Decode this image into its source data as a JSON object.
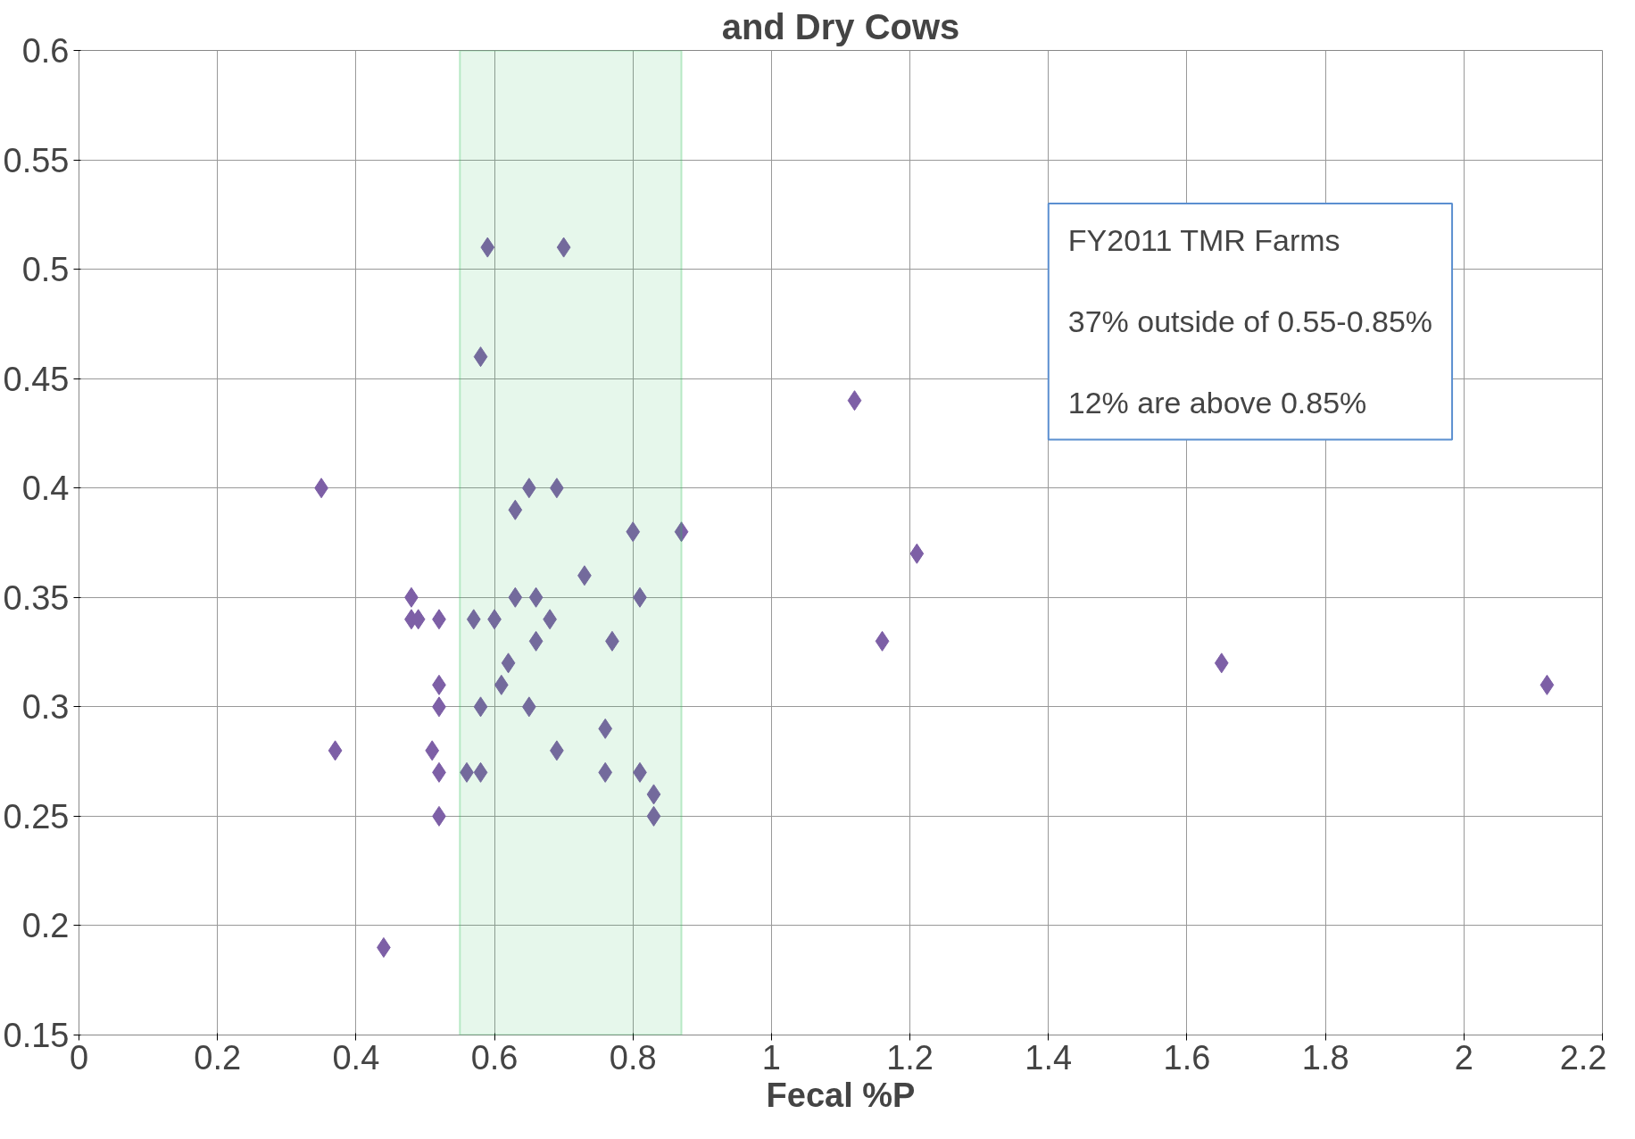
{
  "chart_data": {
    "type": "scatter",
    "title": "and Dry Cows",
    "xlabel": "Fecal %P",
    "x": [
      0.59,
      0.7,
      0.58,
      1.12,
      0.35,
      0.65,
      0.69,
      0.63,
      0.8,
      0.87,
      1.21,
      0.73,
      0.48,
      0.63,
      0.66,
      0.81,
      0.48,
      0.49,
      0.52,
      0.57,
      0.6,
      0.68,
      0.66,
      0.77,
      1.16,
      0.62,
      1.65,
      0.61,
      0.52,
      2.12,
      0.52,
      0.58,
      0.65,
      0.76,
      0.37,
      0.51,
      0.69,
      0.52,
      0.56,
      0.58,
      0.76,
      0.81,
      0.83,
      0.52,
      0.83,
      0.44
    ],
    "values": [
      0.51,
      0.51,
      0.46,
      0.44,
      0.4,
      0.4,
      0.4,
      0.39,
      0.38,
      0.38,
      0.37,
      0.36,
      0.35,
      0.35,
      0.35,
      0.35,
      0.34,
      0.34,
      0.34,
      0.34,
      0.34,
      0.34,
      0.33,
      0.33,
      0.33,
      0.32,
      0.32,
      0.31,
      0.31,
      0.31,
      0.3,
      0.3,
      0.3,
      0.29,
      0.28,
      0.28,
      0.28,
      0.27,
      0.27,
      0.27,
      0.27,
      0.27,
      0.26,
      0.25,
      0.25,
      0.19
    ],
    "color": "#7d5fa6",
    "marker": "diamond",
    "xlim": [
      0,
      2.2
    ],
    "xticks": [
      0,
      0.2,
      0.4,
      0.6,
      0.8,
      1,
      1.2,
      1.4,
      1.6,
      1.8,
      2,
      2.2
    ],
    "ylim": [
      0.15,
      0.6
    ],
    "yticks": [
      0.15,
      0.2,
      0.25,
      0.3,
      0.35,
      0.4,
      0.45,
      0.5,
      0.55,
      0.6
    ],
    "grid": true,
    "bands": [
      {
        "axis": "x",
        "from": 0.55,
        "to": 0.87,
        "color": "#2ebf5a"
      }
    ],
    "annotations": [
      "FY2011 TMR Farms",
      "37% outside of 0.55-0.85%",
      "12% are above 0.85%"
    ]
  }
}
